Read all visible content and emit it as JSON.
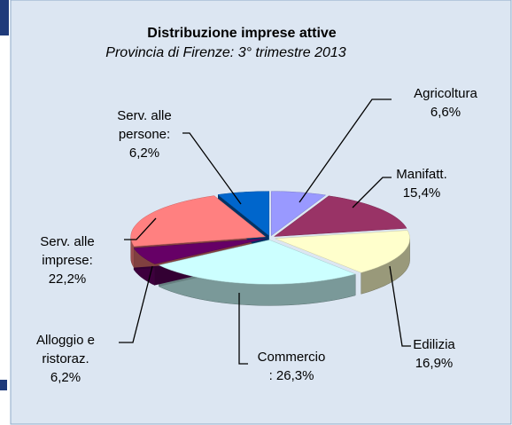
{
  "chart_data": {
    "type": "pie3d",
    "title": "Distribuzione imprese attive",
    "subtitle": "Provincia di Firenze: 3° trimestre 2013",
    "categories": [
      "Agricoltura",
      "Manifatt.",
      "Edilizia",
      "Commercio",
      "Alloggio e ristoraz.",
      "Serv. alle imprese:",
      "Serv. alle persone:"
    ],
    "values": [
      6.6,
      15.4,
      16.9,
      26.3,
      6.2,
      22.2,
      6.2
    ],
    "value_labels": [
      "6,6%",
      "15,4%",
      "16,9%",
      ": 26,3%",
      "6,2%",
      "22,2%",
      "6,2%"
    ],
    "colors": [
      "#9999ff",
      "#993366",
      "#ffffcc",
      "#ccffff",
      "#660066",
      "#ff8080",
      "#0066cc"
    ]
  }
}
